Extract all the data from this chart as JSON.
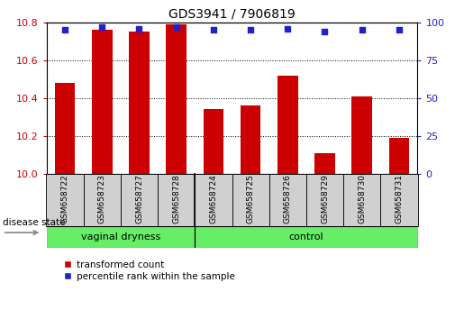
{
  "title": "GDS3941 / 7906819",
  "samples": [
    "GSM658722",
    "GSM658723",
    "GSM658727",
    "GSM658728",
    "GSM658724",
    "GSM658725",
    "GSM658726",
    "GSM658729",
    "GSM658730",
    "GSM658731"
  ],
  "bar_values": [
    10.48,
    10.76,
    10.75,
    10.79,
    10.34,
    10.36,
    10.52,
    10.11,
    10.41,
    10.19
  ],
  "percentile_values": [
    95,
    97,
    96,
    97,
    95,
    95,
    96,
    94,
    95,
    95
  ],
  "groups": [
    {
      "label": "vaginal dryness",
      "start": 0,
      "end": 4
    },
    {
      "label": "control",
      "start": 4,
      "end": 10
    }
  ],
  "bar_color": "#cc0000",
  "dot_color": "#2222cc",
  "ylim_left": [
    10.0,
    10.8
  ],
  "ylim_right": [
    0,
    100
  ],
  "yticks_left": [
    10.0,
    10.2,
    10.4,
    10.6,
    10.8
  ],
  "yticks_right": [
    0,
    25,
    50,
    75,
    100
  ],
  "bar_width": 0.55,
  "label_box_color": "#d0d0d0",
  "green_color": "#66ee66",
  "legend_items": [
    "transformed count",
    "percentile rank within the sample"
  ],
  "disease_state_label": "disease state"
}
